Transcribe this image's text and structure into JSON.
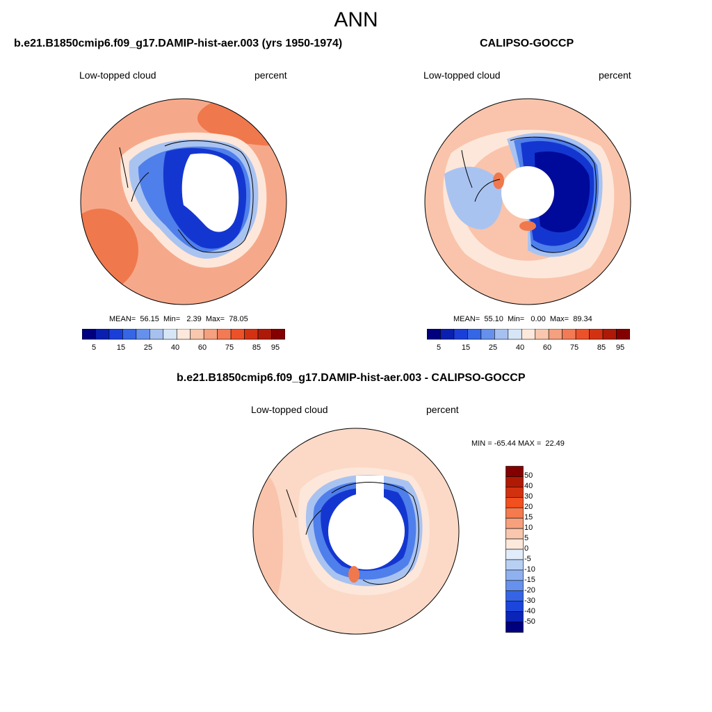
{
  "page_title": "ANN",
  "panels": [
    {
      "title": "b.e21.B1850cmip6.f09_g17.DAMIP-hist-aer.003 (yrs 1950-1974)",
      "left_label": "Low-topped cloud",
      "right_label": "percent",
      "stats": {
        "mean_label": "MEAN=",
        "mean": "56.15",
        "min_label": "Min=",
        "min": "2.39",
        "max_label": "Max=",
        "max": "78.05"
      }
    },
    {
      "title": "CALIPSO-GOCCP",
      "left_label": "Low-topped cloud",
      "right_label": "percent",
      "stats": {
        "mean_label": "MEAN=",
        "mean": "55.10",
        "min_label": "Min=",
        "min": "0.00",
        "max_label": "Max=",
        "max": "89.34"
      }
    },
    {
      "title": "b.e21.B1850cmip6.f09_g17.DAMIP-hist-aer.003 - CALIPSO-GOCCP",
      "left_label": "Low-topped cloud",
      "right_label": "percent",
      "minmax": "MIN = -65.44 MAX =  22.49"
    }
  ],
  "colorbar_abs": {
    "colors": [
      "#00007f",
      "#0a1fb0",
      "#1a3fd8",
      "#3566e6",
      "#6591ec",
      "#a6c0f0",
      "#d7e6f7",
      "#fde8dc",
      "#f8c7ad",
      "#f5a07e",
      "#f27a55",
      "#ec5229",
      "#d23212",
      "#ad1a08",
      "#840000"
    ],
    "tick_labels": [
      "5",
      "15",
      "25",
      "40",
      "60",
      "75",
      "85",
      "95"
    ]
  },
  "colorbar_diff": {
    "colors": [
      "#840000",
      "#b01a05",
      "#d2310f",
      "#f2501f",
      "#f57a4e",
      "#f7a07c",
      "#f9c7ad",
      "#fde8dc",
      "#e0ecf9",
      "#b8d0f3",
      "#8fb1ef",
      "#6691ec",
      "#3565e6",
      "#1c45dc",
      "#0a24b8",
      "#00007f"
    ],
    "tick_labels": [
      "50",
      "40",
      "30",
      "20",
      "15",
      "10",
      "5",
      "0",
      "-5",
      "-10",
      "-15",
      "-20",
      "-30",
      "-40",
      "-50"
    ]
  },
  "map_colors": {
    "ocean_model": "#f6a98a",
    "ocean_obs": "#f9c4ab",
    "ocean_diff": "#fbd9c6",
    "strong_red": "#f0784d",
    "light_peach": "#fde7da",
    "coast_blue_1": "#a9c3f1",
    "coast_blue_2": "#4f7fea",
    "deep_blue": "#1436d0",
    "darkest_blue": "#000a9a",
    "land_mask": "#ffffff",
    "coastline": "#000000"
  }
}
